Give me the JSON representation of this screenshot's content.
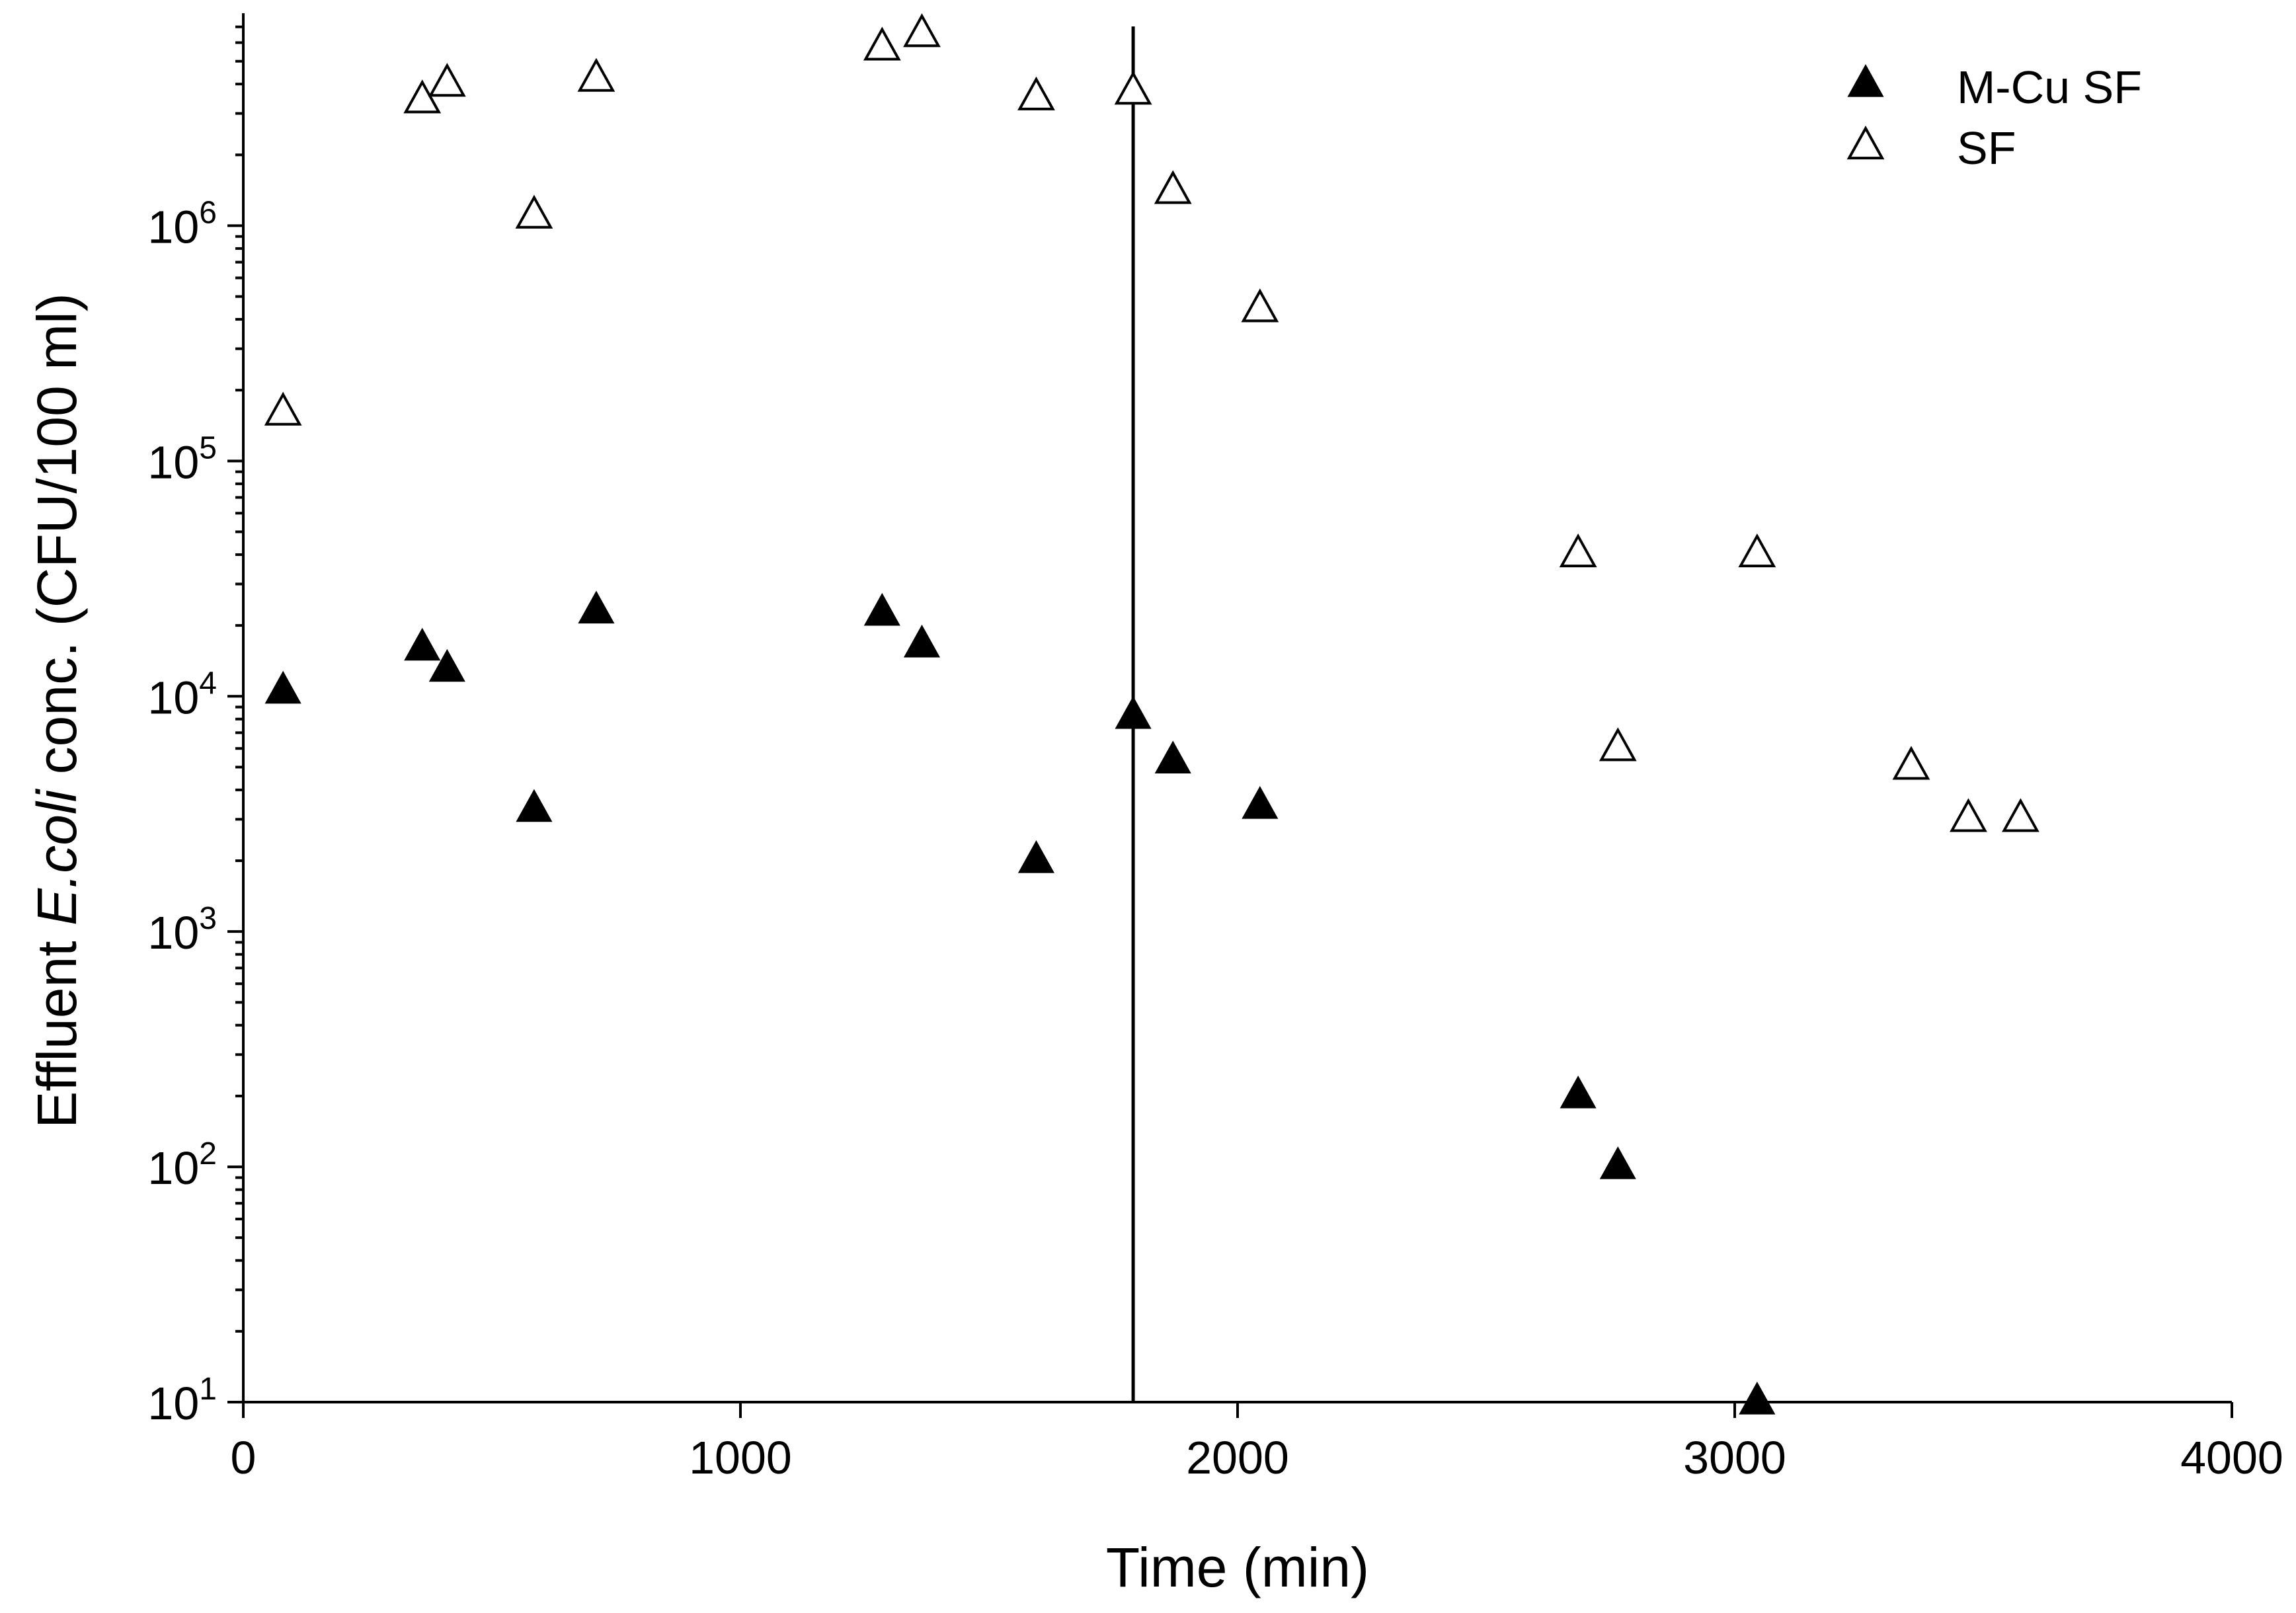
{
  "chart_data": {
    "type": "scatter",
    "xlabel": "Time (min)",
    "ylabel": {
      "prefix": "Effluent ",
      "italic": "E.coli",
      "suffix": " conc. (CFU/100 ml)"
    },
    "xlim": [
      0,
      4000
    ],
    "ylim": [
      10,
      8000000
    ],
    "y_scale": "log",
    "x_ticks": [
      0,
      1000,
      2000,
      3000,
      4000
    ],
    "x_tick_labels": [
      "0",
      "1000",
      "2000",
      "3000",
      "4000"
    ],
    "y_ticks": [
      10,
      100,
      1000,
      10000,
      100000,
      1000000
    ],
    "y_tick_labels": [
      {
        "base": "10",
        "exp": "1"
      },
      {
        "base": "10",
        "exp": "2"
      },
      {
        "base": "10",
        "exp": "3"
      },
      {
        "base": "10",
        "exp": "4"
      },
      {
        "base": "10",
        "exp": "5"
      },
      {
        "base": "10",
        "exp": "6"
      }
    ],
    "grid": false,
    "legend_position": "top-right",
    "vertical_line_x": 1790,
    "series": [
      {
        "name": "M-Cu SF",
        "marker": "filled-triangle",
        "color": "#000000",
        "points": [
          {
            "x": 80,
            "y": 10500
          },
          {
            "x": 360,
            "y": 16000
          },
          {
            "x": 410,
            "y": 13000
          },
          {
            "x": 585,
            "y": 3300
          },
          {
            "x": 710,
            "y": 23000
          },
          {
            "x": 1285,
            "y": 22500
          },
          {
            "x": 1365,
            "y": 16500
          },
          {
            "x": 1595,
            "y": 2000
          },
          {
            "x": 1790,
            "y": 8200
          },
          {
            "x": 1870,
            "y": 5300
          },
          {
            "x": 2045,
            "y": 3400
          },
          {
            "x": 2685,
            "y": 200
          },
          {
            "x": 2765,
            "y": 100
          },
          {
            "x": 3045,
            "y": 10
          }
        ]
      },
      {
        "name": "SF",
        "marker": "open-triangle",
        "color": "#000000",
        "points": [
          {
            "x": 80,
            "y": 160000
          },
          {
            "x": 360,
            "y": 3400000
          },
          {
            "x": 410,
            "y": 4000000
          },
          {
            "x": 585,
            "y": 1100000
          },
          {
            "x": 710,
            "y": 4200000
          },
          {
            "x": 1285,
            "y": 5700000
          },
          {
            "x": 1365,
            "y": 6500000
          },
          {
            "x": 1595,
            "y": 3500000
          },
          {
            "x": 1790,
            "y": 3700000
          },
          {
            "x": 1870,
            "y": 1400000
          },
          {
            "x": 2045,
            "y": 440000
          },
          {
            "x": 2685,
            "y": 40000
          },
          {
            "x": 2765,
            "y": 6000
          },
          {
            "x": 3045,
            "y": 40000
          },
          {
            "x": 3355,
            "y": 5000
          },
          {
            "x": 3470,
            "y": 3000
          },
          {
            "x": 3575,
            "y": 3000
          }
        ]
      }
    ]
  }
}
